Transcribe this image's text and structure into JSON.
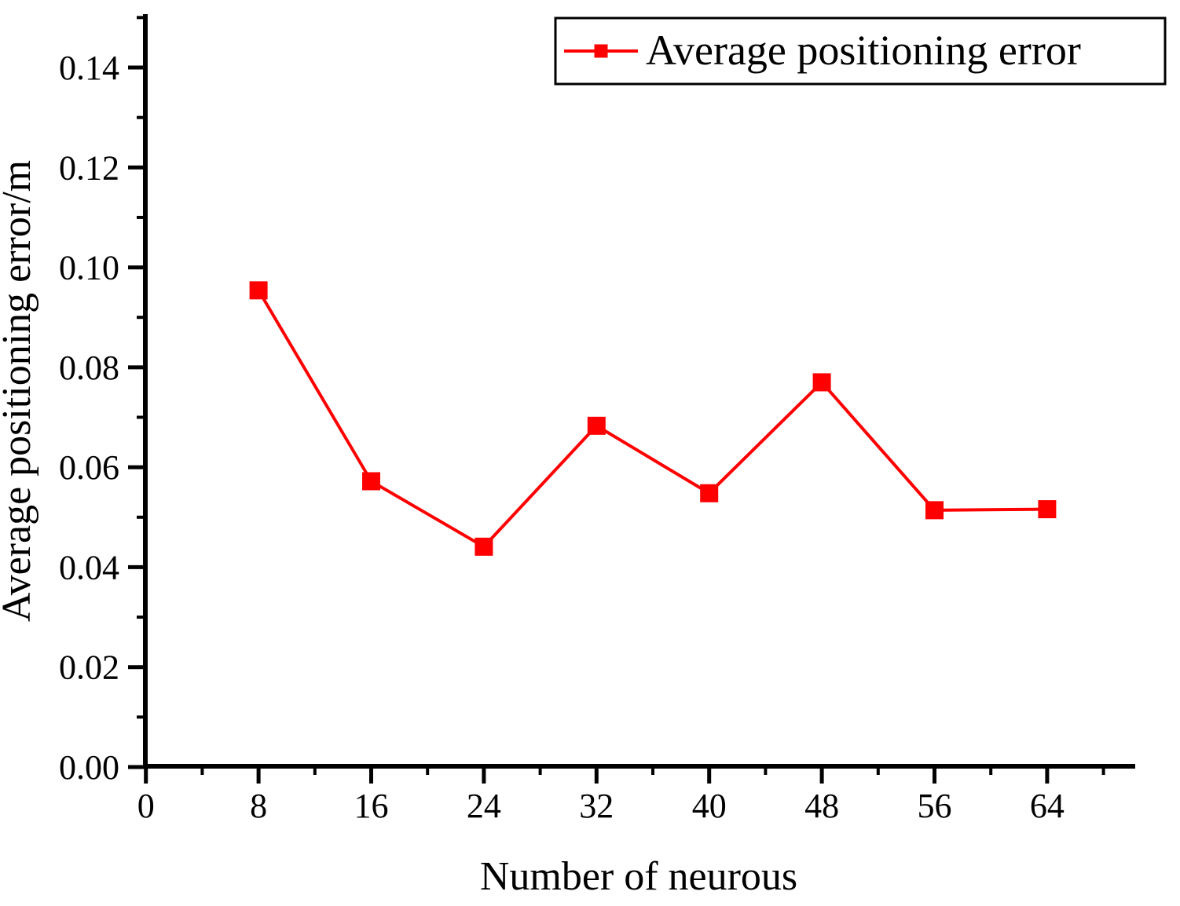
{
  "figure": {
    "background": "#ffffff",
    "axis_color": "#000000",
    "text_color": "#000000"
  },
  "chart_data": {
    "type": "line",
    "title": "",
    "xlabel": "Number of neurous",
    "ylabel": "Average positioning error/m",
    "x": [
      8,
      16,
      24,
      32,
      40,
      48,
      56,
      64
    ],
    "series": [
      {
        "name": "Average positioning error",
        "values": [
          0.0954,
          0.0572,
          0.0441,
          0.0683,
          0.0548,
          0.077,
          0.0514,
          0.0516
        ],
        "color": "#ff0000",
        "marker": "square",
        "line_width": 4,
        "marker_size": 23
      }
    ],
    "xlim": [
      0,
      70.2
    ],
    "ylim": [
      0,
      0.151
    ],
    "grid": false,
    "x_major_ticks": [
      0,
      8,
      16,
      24,
      32,
      40,
      48,
      56,
      64
    ],
    "x_major_tick_labels": [
      "0",
      "8",
      "16",
      "24",
      "32",
      "40",
      "48",
      "56",
      "64"
    ],
    "x_minor_ticks": [
      4,
      12,
      20,
      28,
      36,
      44,
      52,
      60,
      68
    ],
    "y_major_ticks": [
      0.0,
      0.02,
      0.04,
      0.06,
      0.08,
      0.1,
      0.12,
      0.14
    ],
    "y_major_tick_labels": [
      "0.00",
      "0.02",
      "0.04",
      "0.06",
      "0.08",
      "0.10",
      "0.12",
      "0.14"
    ],
    "y_minor_ticks": [
      0.01,
      0.03,
      0.05,
      0.07,
      0.09,
      0.11,
      0.13,
      0.15
    ],
    "legend": {
      "position": "top-right",
      "entries": [
        "Average positioning error"
      ]
    }
  }
}
